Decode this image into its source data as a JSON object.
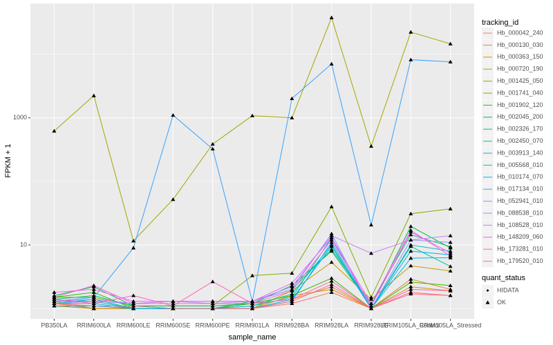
{
  "chart_data": {
    "type": "line",
    "x_label": "sample_name",
    "y_label": "FPKM + 1",
    "log_y": true,
    "grid": true,
    "categories": [
      "PB350LA",
      "RRIM600LA",
      "RRIM600LE",
      "RRIM600SE",
      "RRIM600PE",
      "RRIM901LA",
      "RRIM928BA",
      "RRIM928LA",
      "RRIM928LE",
      "RRIM105LA_Control",
      "RRIM105LA_Stressed"
    ],
    "ylim": [
      0.69,
      63000
    ],
    "yticks": [
      10,
      1000
    ],
    "legend_title": "tracking_id",
    "legend_position": "right",
    "series": [
      {
        "name": "Hb_000042_240",
        "color": "#F8766D",
        "values": [
          1.1,
          1,
          1,
          1,
          1,
          1,
          1.2,
          1.8,
          1,
          1.8,
          1.6
        ]
      },
      {
        "name": "Hb_000130_030",
        "color": "#EA8331",
        "values": [
          1.2,
          1,
          1,
          1,
          1,
          1,
          1.4,
          2.2,
          1,
          2.9,
          2.0
        ]
      },
      {
        "name": "Hb_000363_150",
        "color": "#D89000",
        "values": [
          1.1,
          1,
          1,
          1,
          1,
          1,
          1.6,
          2.0,
          1,
          2.2,
          1.9
        ]
      },
      {
        "name": "Hb_000720_190",
        "color": "#C09B00",
        "values": [
          1.3,
          1,
          1,
          1,
          1,
          1,
          1.9,
          5.35,
          1.4,
          4.7,
          3.9
        ]
      },
      {
        "name": "Hb_001425_050",
        "color": "#A3A500",
        "values": [
          620,
          2230,
          11.6,
          52,
          386,
          1080,
          1000,
          37700,
          358,
          22300,
          14600
        ]
      },
      {
        "name": "Hb_001741_040",
        "color": "#7CAE00",
        "values": [
          1.5,
          1.5,
          1.1,
          1.1,
          1.1,
          3.3,
          3.6,
          40,
          1.5,
          31,
          37
        ]
      },
      {
        "name": "Hb_001902_120",
        "color": "#39B600",
        "values": [
          1.5,
          1.8,
          1,
          1,
          1,
          1.2,
          1.6,
          3.0,
          1,
          2.6,
          2.3
        ]
      },
      {
        "name": "Hb_002045_200",
        "color": "#00BB4E",
        "values": [
          1.6,
          2.2,
          1.1,
          1.1,
          1.1,
          1.2,
          2.3,
          8.0,
          1.1,
          19.6,
          9.0
        ]
      },
      {
        "name": "Hb_002326_170",
        "color": "#00BF7D",
        "values": [
          1.4,
          1.6,
          1.1,
          1,
          1,
          1.3,
          2.0,
          8.5,
          1.2,
          14.5,
          9.4
        ]
      },
      {
        "name": "Hb_002450_070",
        "color": "#00C1A3",
        "values": [
          1.2,
          1.4,
          1,
          1,
          1,
          1.1,
          1.7,
          10,
          1,
          9.5,
          4.6
        ]
      },
      {
        "name": "Hb_003913_140",
        "color": "#00BFC4",
        "values": [
          1.3,
          1.3,
          1,
          1,
          1,
          1.1,
          1.5,
          13,
          1,
          10,
          8
        ]
      },
      {
        "name": "Hb_005568_010",
        "color": "#00BAE0",
        "values": [
          1.2,
          1.2,
          1,
          1,
          1,
          1,
          1.4,
          9.5,
          1,
          6.2,
          6.3
        ]
      },
      {
        "name": "Hb_010174_070",
        "color": "#00B0F6",
        "values": [
          1.1,
          1.1,
          1,
          1,
          1,
          1,
          1.3,
          11,
          1,
          8,
          7
        ]
      },
      {
        "name": "Hb_017134_010",
        "color": "#35A2FF",
        "values": [
          1.3,
          1.5,
          9.0,
          1100,
          324,
          1.3,
          2010,
          7050,
          20.7,
          8200,
          7600
        ]
      },
      {
        "name": "Hb_052941_010",
        "color": "#9590FF",
        "values": [
          1.2,
          1.3,
          1.2,
          1.3,
          1.3,
          1.3,
          2.0,
          15,
          1,
          12,
          11
        ]
      },
      {
        "name": "Hb_088538_010",
        "color": "#C77CFF",
        "values": [
          1.3,
          1.4,
          1.2,
          1.3,
          1.2,
          1.3,
          2.2,
          14,
          7.4,
          12,
          14
        ]
      },
      {
        "name": "Hb_108528_010",
        "color": "#E76BF3",
        "values": [
          1.8,
          2.0,
          1.3,
          1.3,
          1.3,
          1.3,
          2.5,
          13,
          1.2,
          17,
          6.7
        ]
      },
      {
        "name": "Hb_148209_060",
        "color": "#FA62DB",
        "values": [
          1.5,
          2.3,
          1.2,
          1.2,
          1.2,
          1.2,
          1.9,
          12,
          1.1,
          16,
          7.5
        ]
      },
      {
        "name": "Hb_173281_010",
        "color": "#FF62BC",
        "values": [
          1.4,
          1.2,
          1.6,
          1.1,
          2.65,
          1.2,
          1.4,
          2.7,
          1,
          2.0,
          1.9
        ]
      },
      {
        "name": "Hb_179520_010",
        "color": "#FF6C91",
        "values": [
          1.2,
          1.1,
          1.1,
          1,
          1,
          1,
          1.3,
          2.4,
          1,
          1.7,
          1.6
        ]
      }
    ],
    "shape_legend": {
      "title": "quant_status",
      "entries": [
        "HIDATA",
        "OK"
      ]
    }
  }
}
